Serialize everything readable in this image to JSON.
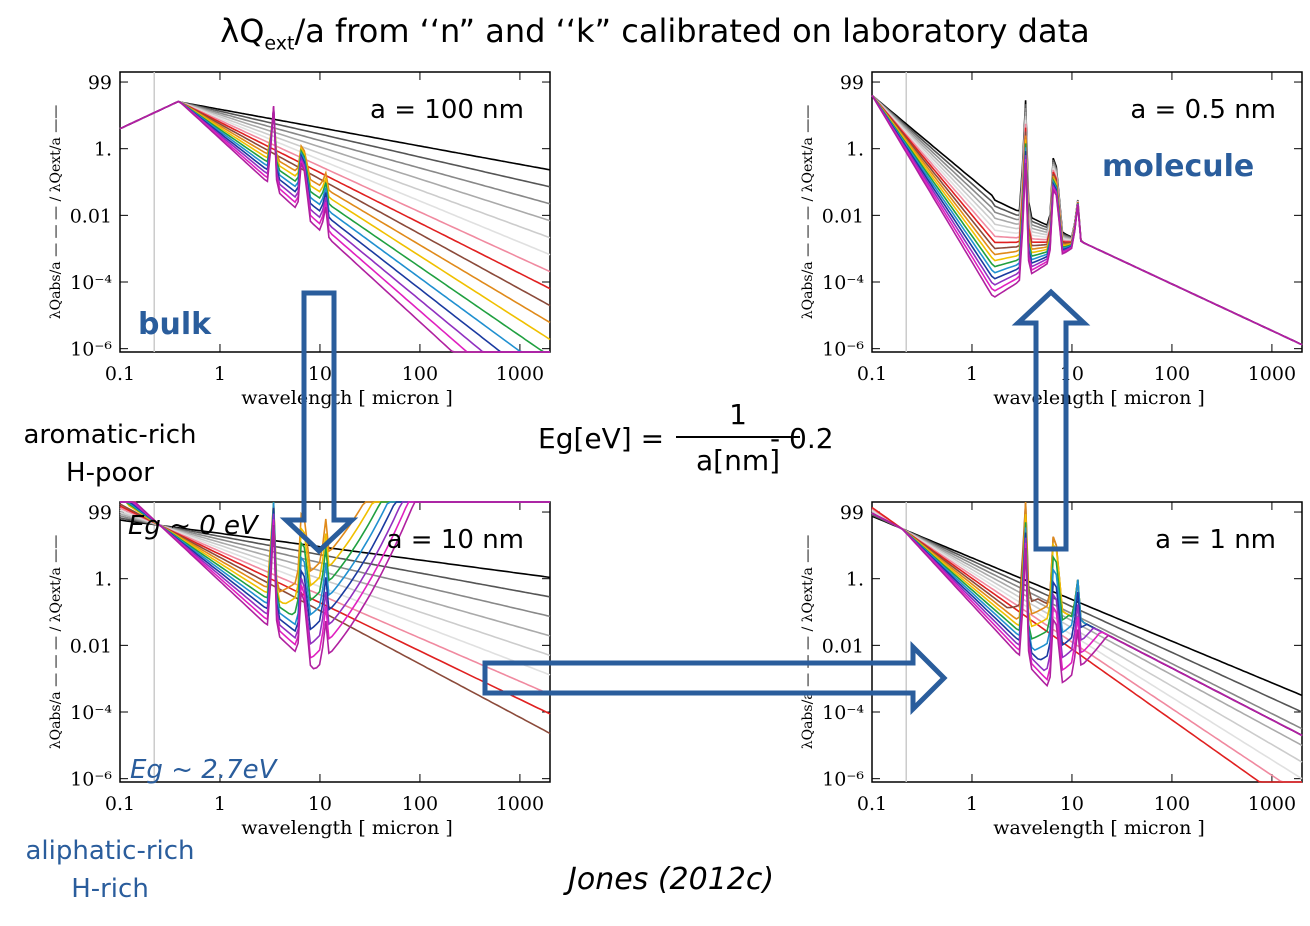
{
  "title": {
    "lead": "λQ",
    "sub": "ext",
    "tail": "/a from ‘‘n” and ‘‘k” calibrated on laboratory data"
  },
  "labels": {
    "bulk": "bulk",
    "molecule": "molecule",
    "aromatic": "aromatic-rich",
    "hpoor": "H-poor",
    "aliphatic": "aliphatic-rich",
    "hrich": "H-rich",
    "eg0": "Eg ~ 0 eV",
    "eg27": "Eg ~ 2.7eV",
    "credit": "Jones (2012c)"
  },
  "equation": {
    "lhs": "Eg[eV]  =",
    "numerator": "1",
    "denominator": "a[nm]",
    "tail": "- 0.2"
  },
  "axes": {
    "xlabel": "wavelength  [ micron ]",
    "ylabel": "λQabs/a — — — / λQext/a ——",
    "xticks": [
      "0.1",
      "1",
      "10",
      "100",
      "1000"
    ],
    "yticks": [
      "99",
      "1.",
      "0.01",
      "10⁻⁴",
      "10⁻⁶"
    ]
  },
  "colors": {
    "arrow": "#2a5d9c",
    "accent": "#2a5d9c"
  },
  "chart_data": [
    {
      "type": "line",
      "panel": "top-left",
      "annotation": "a = 100 nm",
      "xscale": "log",
      "yscale": "log",
      "xlim": [
        0.1,
        2000
      ],
      "ylim": [
        1e-06,
        200
      ]
    },
    {
      "type": "line",
      "panel": "top-right",
      "annotation": "a = 0.5 nm",
      "xscale": "log",
      "yscale": "log",
      "xlim": [
        0.1,
        2000
      ],
      "ylim": [
        1e-06,
        200
      ]
    },
    {
      "type": "line",
      "panel": "bottom-left",
      "annotation": "a = 10 nm",
      "xscale": "log",
      "yscale": "log",
      "xlim": [
        0.1,
        2000
      ],
      "ylim": [
        1e-06,
        200
      ]
    },
    {
      "type": "line",
      "panel": "bottom-right",
      "annotation": "a = 1 nm",
      "xscale": "log",
      "yscale": "log",
      "xlim": [
        0.1,
        2000
      ],
      "ylim": [
        1e-06,
        200
      ]
    }
  ]
}
